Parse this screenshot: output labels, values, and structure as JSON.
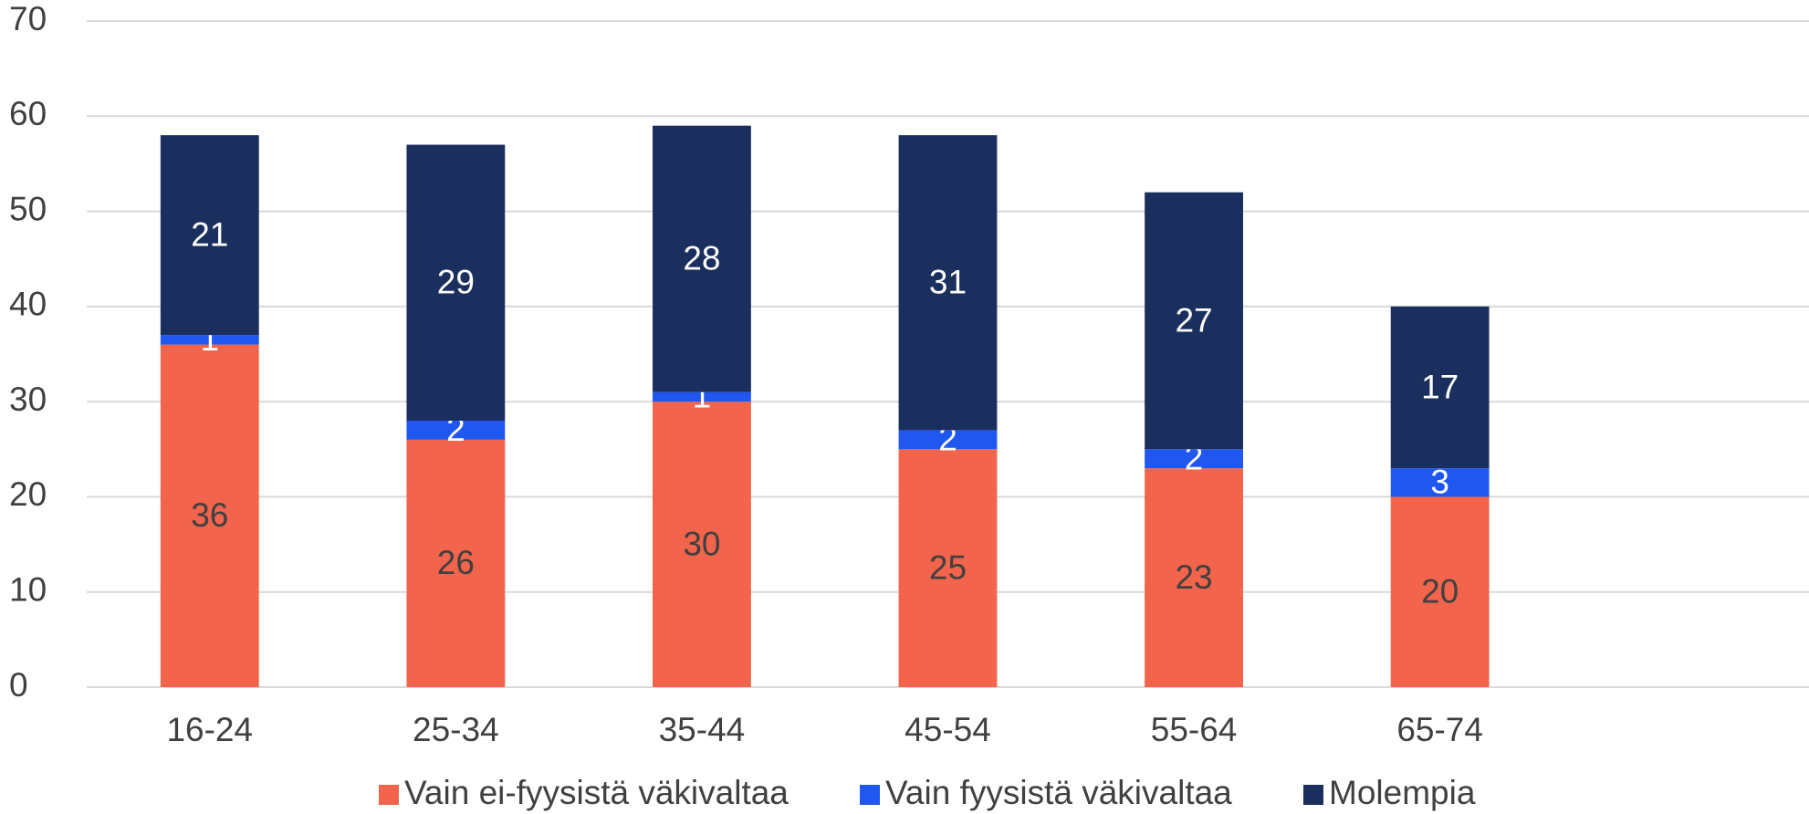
{
  "chart_data": {
    "type": "stacked_bar",
    "categories": [
      "16-24",
      "25-34",
      "35-44",
      "45-54",
      "55-64",
      "65-74",
      null
    ],
    "series": [
      {
        "name": "Vain ei-fyysistä väkivaltaa",
        "color": "#f2644b",
        "values": [
          36,
          26,
          30,
          25,
          23,
          20,
          null
        ]
      },
      {
        "name": "Vain fyysistä väkivaltaa",
        "color": "#1f57f0",
        "values": [
          1,
          2,
          1,
          2,
          2,
          3,
          null
        ]
      },
      {
        "name": "Molempia",
        "color": "#1b2f5f",
        "values": [
          21,
          29,
          28,
          31,
          27,
          17,
          null
        ]
      }
    ],
    "ylim": [
      0,
      70
    ],
    "yticks": [
      0,
      10,
      20,
      30,
      40,
      50,
      60,
      70
    ],
    "grid": true,
    "legend": "bottom"
  }
}
